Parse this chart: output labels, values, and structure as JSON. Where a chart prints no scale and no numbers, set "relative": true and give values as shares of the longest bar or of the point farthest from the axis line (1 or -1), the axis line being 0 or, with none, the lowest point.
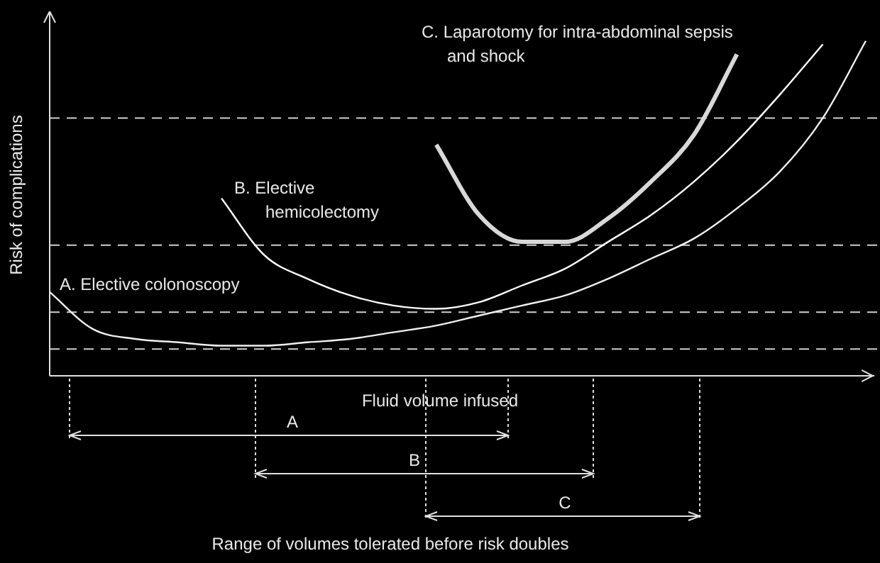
{
  "chart_data": {
    "type": "line",
    "relative": true,
    "ylabel": "Risk of complications",
    "xlabel": "Fluid volume infused",
    "categories": [
      null,
      null,
      null,
      null,
      null,
      null,
      null,
      null,
      null,
      null,
      null,
      null,
      null,
      null,
      null,
      null,
      null,
      null,
      null,
      null
    ],
    "series": [
      {
        "name": "A. Elective colonoscopy",
        "color": "#f0f0f0",
        "values": [
          0.25,
          0.14,
          0.11,
          0.1,
          0.09,
          0.09,
          0.1,
          0.11,
          0.13,
          0.15,
          0.18,
          0.21,
          0.24,
          0.29,
          0.35,
          0.41,
          0.5,
          0.61,
          0.77,
          1
        ]
      },
      {
        "name": "B. Elective hemicolectomy",
        "color": "#ffffff",
        "values": [
          null,
          null,
          null,
          null,
          0.53,
          0.36,
          0.29,
          0.24,
          0.21,
          0.2,
          0.22,
          0.27,
          0.32,
          0.4,
          0.48,
          0.58,
          0.7,
          0.84,
          0.99,
          null
        ]
      },
      {
        "name": "C. Laparotomy for intra-abdominal sepsis and shock",
        "color": "#d8d8d8",
        "values": [
          null,
          null,
          null,
          null,
          null,
          null,
          null,
          null,
          null,
          0.69,
          0.48,
          0.4,
          0.4,
          0.47,
          0.58,
          0.72,
          0.96,
          null,
          null,
          null
        ]
      }
    ],
    "ref_lines": [
      {
        "axis": "y",
        "value": 0.77,
        "color": "#d0d0d0",
        "line_style": "dashed"
      },
      {
        "axis": "y",
        "value": 0.39,
        "color": "#d0d0d0",
        "line_style": "dashed"
      },
      {
        "axis": "y",
        "value": 0.19,
        "color": "#d0d0d0",
        "line_style": "dashed"
      },
      {
        "axis": "y",
        "value": 0.08,
        "color": "#d0d0d0",
        "line_style": "dashed"
      }
    ],
    "annotations": [
      "A",
      "B",
      "C",
      "Range of volumes tolerated before risk doubles"
    ],
    "legend": false,
    "grid": false,
    "marker": "none",
    "line_style": "solid"
  }
}
